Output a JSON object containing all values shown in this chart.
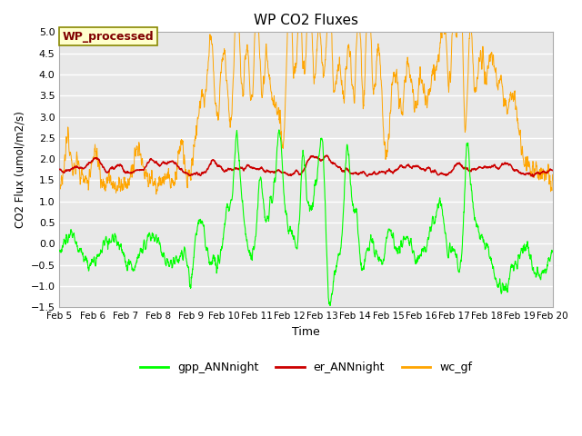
{
  "title": "WP CO2 Fluxes",
  "xlabel": "Time",
  "ylabel": "CO2 Flux (umol/m2/s)",
  "xlim_days": [
    5,
    20
  ],
  "ylim": [
    -1.5,
    5.0
  ],
  "yticks": [
    -1.5,
    -1.0,
    -0.5,
    0.0,
    0.5,
    1.0,
    1.5,
    2.0,
    2.5,
    3.0,
    3.5,
    4.0,
    4.5,
    5.0
  ],
  "xtick_labels": [
    "Feb 5",
    "Feb 6",
    "Feb 7",
    "Feb 8",
    "Feb 9",
    "Feb 10",
    "Feb 11",
    "Feb 12",
    "Feb 13",
    "Feb 14",
    "Feb 15",
    "Feb 16",
    "Feb 17",
    "Feb 18",
    "Feb 19",
    "Feb 20"
  ],
  "xtick_positions": [
    5,
    6,
    7,
    8,
    9,
    10,
    11,
    12,
    13,
    14,
    15,
    16,
    17,
    18,
    19,
    20
  ],
  "gpp_color": "#00ff00",
  "er_color": "#cc0000",
  "wc_color": "#ffa500",
  "annotation_text": "WP_processed",
  "annotation_color": "#800000",
  "annotation_bg": "#ffffcc",
  "annotation_border": "#888800",
  "bg_color": "#e8e8e8",
  "legend_labels": [
    "gpp_ANNnight",
    "er_ANNnight",
    "wc_gf"
  ],
  "n_points": 2000,
  "seed": 42
}
